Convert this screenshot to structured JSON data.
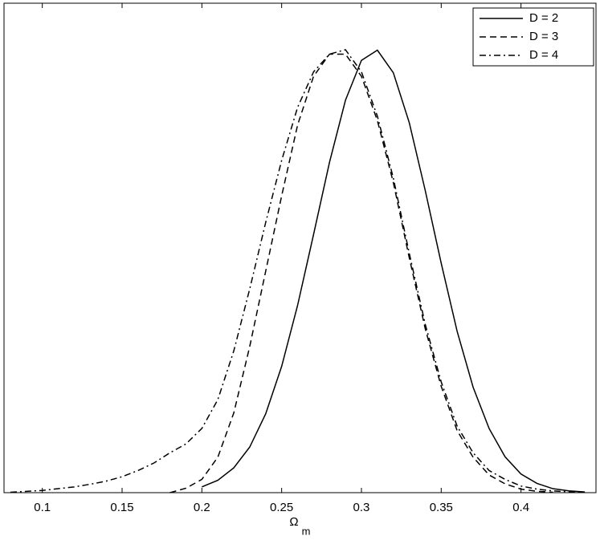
{
  "chart_data": {
    "type": "line",
    "xlabel": {
      "symbol": "Ω",
      "subscript": "m"
    },
    "x": [
      0.08,
      0.09,
      0.1,
      0.11,
      0.12,
      0.13,
      0.14,
      0.15,
      0.16,
      0.17,
      0.18,
      0.19,
      0.2,
      0.21,
      0.22,
      0.23,
      0.24,
      0.25,
      0.26,
      0.27,
      0.28,
      0.29,
      0.3,
      0.31,
      0.32,
      0.33,
      0.34,
      0.35,
      0.36,
      0.37,
      0.38,
      0.39,
      0.4,
      0.41,
      0.42,
      0.43,
      0.44
    ],
    "series": [
      {
        "name": "D = 2",
        "color": "#000000",
        "linestyle": "solid",
        "values": [
          null,
          null,
          null,
          null,
          null,
          null,
          null,
          null,
          null,
          null,
          null,
          null,
          0.013,
          0.028,
          0.056,
          0.103,
          0.178,
          0.285,
          0.423,
          0.583,
          0.746,
          0.886,
          0.976,
          0.999,
          0.948,
          0.835,
          0.682,
          0.518,
          0.364,
          0.238,
          0.145,
          0.081,
          0.042,
          0.021,
          0.009,
          0.004,
          0.0015
        ]
      },
      {
        "name": "D = 3",
        "color": "#000000",
        "linestyle": "dashed",
        "values": [
          null,
          null,
          null,
          null,
          null,
          null,
          null,
          null,
          null,
          null,
          0.0,
          0.01,
          0.03,
          0.08,
          0.18,
          0.33,
          0.5,
          0.67,
          0.83,
          0.94,
          0.99,
          0.99,
          0.94,
          0.84,
          0.7,
          0.53,
          0.37,
          0.24,
          0.14,
          0.08,
          0.04,
          0.02,
          0.008,
          0.003,
          0.001,
          null,
          null
        ]
      },
      {
        "name": "D = 4",
        "color": "#000000",
        "linestyle": "dashdot",
        "values": [
          0.001,
          0.003,
          0.005,
          0.009,
          0.013,
          0.019,
          0.026,
          0.036,
          0.05,
          0.067,
          0.09,
          0.11,
          0.145,
          0.21,
          0.32,
          0.46,
          0.61,
          0.75,
          0.87,
          0.95,
          0.99,
          1.0,
          0.95,
          0.85,
          0.71,
          0.54,
          0.38,
          0.25,
          0.15,
          0.09,
          0.05,
          0.03,
          0.015,
          0.008,
          0.004,
          0.002,
          0.001
        ]
      }
    ],
    "xlim": [
      0.076,
      0.447
    ],
    "xticks": [
      0.1,
      0.15,
      0.2,
      0.25,
      0.3,
      0.35,
      0.4
    ],
    "ylim": [
      0,
      1.105
    ],
    "legend": "upper right"
  }
}
